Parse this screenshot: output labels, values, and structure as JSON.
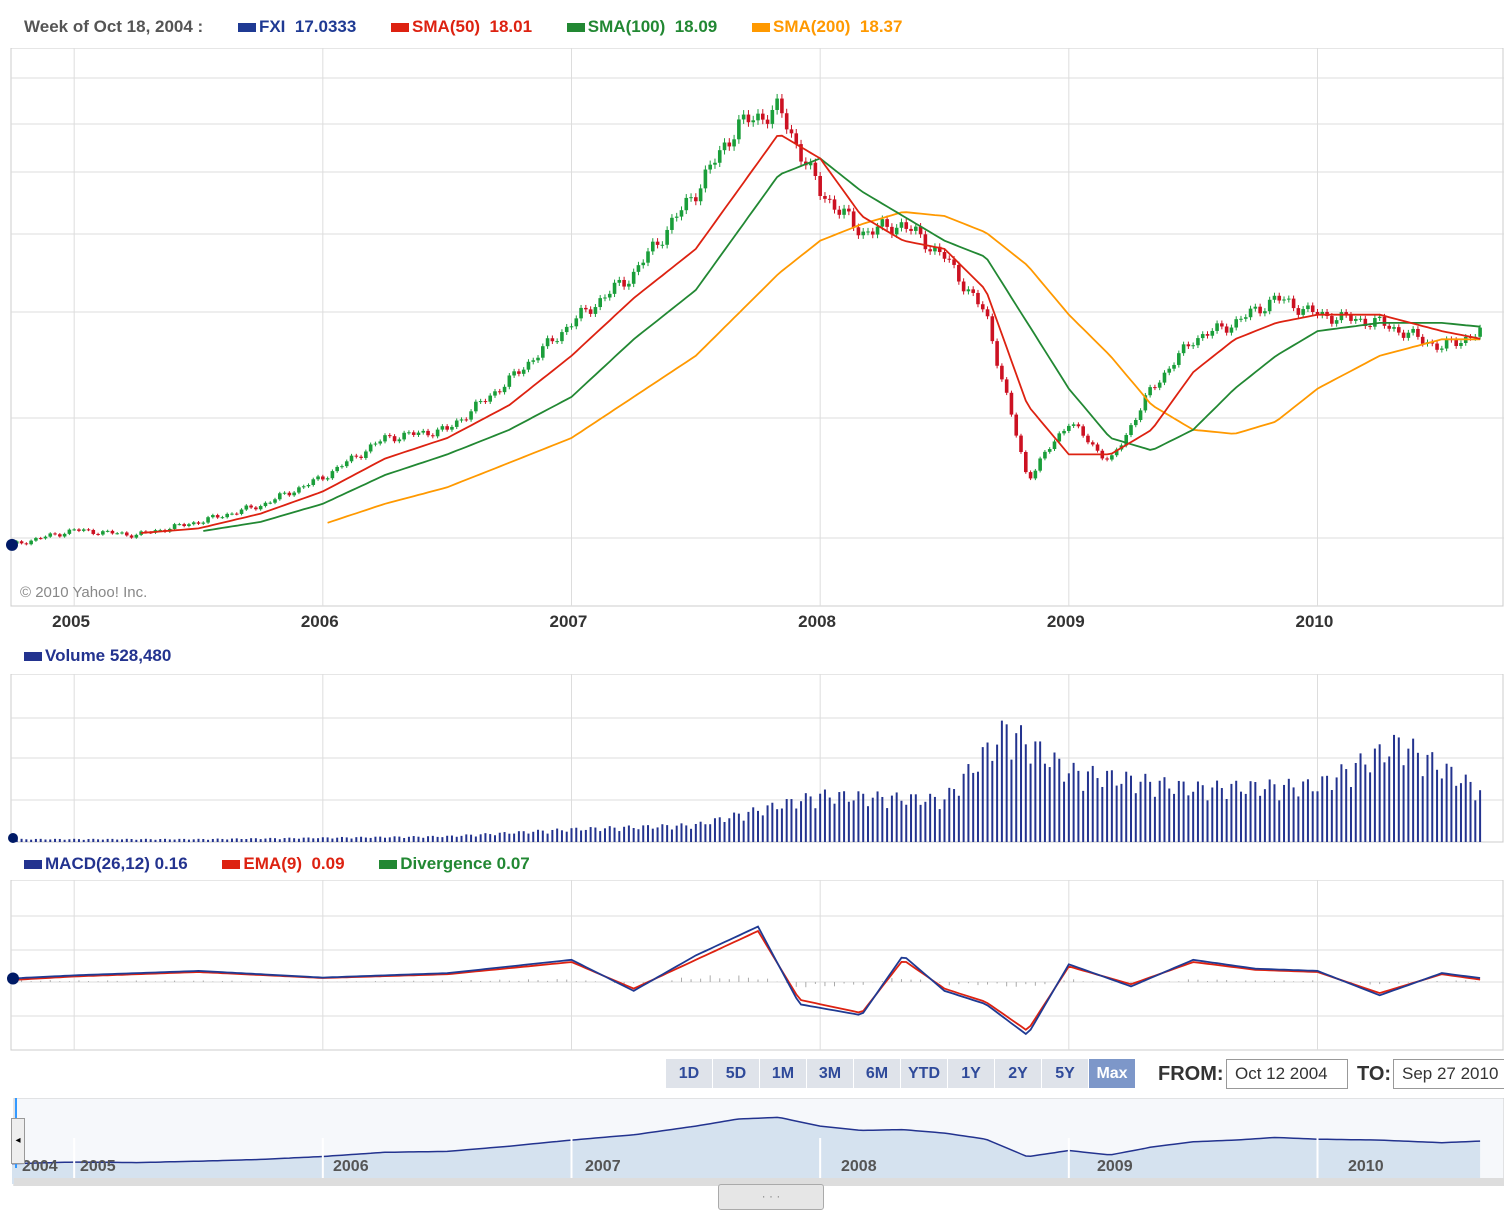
{
  "header": {
    "week_label": "Week of Oct 18, 2004 :",
    "fxi_label": "FXI",
    "fxi_value": "17.0333",
    "sma50_label": "SMA(50)",
    "sma50_value": "18.01",
    "sma100_label": "SMA(100)",
    "sma100_value": "18.09",
    "sma200_label": "SMA(200)",
    "sma200_value": "18.37"
  },
  "colors": {
    "fxi": "#1f3a93",
    "sma50": "#dd2211",
    "sma100": "#228833",
    "sma200": "#ff9900",
    "up": "#1a9e3a",
    "down": "#cc1122",
    "volume": "#23338f",
    "nav_fill": "#d5e2ef",
    "nav_line": "#23338f"
  },
  "copyright": "© 2010 Yahoo! Inc.",
  "years": [
    "2005",
    "2006",
    "2007",
    "2008",
    "2009",
    "2010"
  ],
  "volume_header": {
    "label": "Volume",
    "value": "528,480"
  },
  "macd_header": {
    "macd_label": "MACD(26,12)",
    "macd_value": "0.16",
    "ema_label": "EMA(9)",
    "ema_value": "0.09",
    "div_label": "Divergence",
    "div_value": "0.07"
  },
  "range_buttons": [
    "1D",
    "5D",
    "1M",
    "3M",
    "6M",
    "YTD",
    "1Y",
    "2Y",
    "5Y",
    "Max"
  ],
  "active_range": "Max",
  "from_label": "FROM:",
  "from_value": "Oct 12 2004",
  "to_label": "TO:",
  "to_value": "Sep 27 2010",
  "nav_years": [
    "2004",
    "2005",
    "2006",
    "2007",
    "2008",
    "2009",
    "2010"
  ],
  "chart_data": [
    {
      "type": "line",
      "x": [
        "2004-10",
        "2005-01",
        "2005-04",
        "2005-07",
        "2005-10",
        "2006-01",
        "2006-04",
        "2006-07",
        "2006-10",
        "2007-01",
        "2007-04",
        "2007-07",
        "2007-09",
        "2007-11",
        "2008-01",
        "2008-03",
        "2008-05",
        "2008-07",
        "2008-09",
        "2008-11",
        "2009-01",
        "2009-03",
        "2009-05",
        "2009-07",
        "2009-09",
        "2009-11",
        "2010-01",
        "2010-04",
        "2010-07",
        "2010-09"
      ],
      "series": [
        {
          "name": "FXI",
          "values": [
            17.0,
            18.8,
            18.2,
            19.8,
            21.8,
            25.2,
            30.0,
            31.0,
            37.0,
            44.0,
            50.0,
            60.0,
            68.0,
            70.0,
            60.0,
            55.0,
            56.0,
            52.0,
            45.0,
            25.0,
            32.0,
            27.0,
            36.0,
            42.0,
            44.0,
            47.0,
            45.0,
            44.0,
            41.0,
            43.0
          ]
        },
        {
          "name": "SMA(50)",
          "values": [
            null,
            null,
            18.4,
            19.0,
            20.8,
            23.5,
            27.5,
            30.0,
            34.0,
            40.0,
            47.0,
            53.0,
            60.0,
            67.0,
            64.0,
            57.0,
            54.0,
            53.0,
            48.0,
            34.0,
            28.0,
            28.0,
            31.0,
            38.0,
            42.0,
            44.0,
            45.0,
            45.0,
            43.0,
            42.0
          ]
        },
        {
          "name": "SMA(100)",
          "values": [
            null,
            null,
            null,
            18.6,
            19.8,
            22.0,
            25.5,
            28.0,
            31.0,
            35.0,
            42.0,
            48.0,
            55.0,
            62.0,
            64.0,
            60.0,
            57.0,
            54.0,
            52.0,
            44.0,
            36.0,
            30.0,
            28.5,
            31.0,
            36.0,
            40.0,
            43.0,
            44.0,
            44.0,
            43.5
          ]
        },
        {
          "name": "SMA(200)",
          "values": [
            null,
            null,
            null,
            null,
            null,
            19.5,
            22.0,
            24.0,
            27.0,
            30.0,
            35.0,
            40.0,
            45.0,
            50.0,
            54.0,
            56.0,
            57.5,
            57.0,
            55.0,
            51.0,
            45.0,
            40.0,
            34.0,
            31.0,
            30.5,
            32.0,
            36.0,
            40.0,
            42.0,
            42.0
          ]
        }
      ],
      "ylim": [
        12,
        75
      ]
    },
    {
      "type": "bar",
      "categories": [
        "2004-10",
        "2005-01",
        "2005-07",
        "2006-01",
        "2006-07",
        "2007-01",
        "2007-07",
        "2008-01",
        "2008-07",
        "2008-10",
        "2009-01",
        "2009-07",
        "2010-01",
        "2010-05",
        "2010-09"
      ],
      "values": [
        0.02,
        0.02,
        0.02,
        0.03,
        0.04,
        0.09,
        0.12,
        0.33,
        0.3,
        0.8,
        0.5,
        0.38,
        0.4,
        0.7,
        0.35
      ],
      "ylim": [
        0,
        1
      ]
    },
    {
      "type": "line",
      "x": [
        "2004-10",
        "2005-01",
        "2005-07",
        "2006-01",
        "2006-07",
        "2007-01",
        "2007-04",
        "2007-07",
        "2007-10",
        "2007-12",
        "2008-03",
        "2008-05",
        "2008-07",
        "2008-09",
        "2008-11",
        "2009-01",
        "2009-04",
        "2009-07",
        "2009-10",
        "2010-01",
        "2010-04",
        "2010-07",
        "2010-09"
      ],
      "series": [
        {
          "name": "MACD(26,12)",
          "values": [
            0.16,
            0.3,
            0.5,
            0.2,
            0.4,
            1.0,
            -0.4,
            1.2,
            2.5,
            -1.0,
            -1.5,
            1.2,
            -0.4,
            -1.0,
            -2.4,
            0.8,
            -0.2,
            1.0,
            0.6,
            0.5,
            -0.6,
            0.4,
            0.16
          ]
        },
        {
          "name": "EMA(9)",
          "values": [
            0.09,
            0.25,
            0.45,
            0.18,
            0.35,
            0.9,
            -0.3,
            1.0,
            2.3,
            -0.8,
            -1.4,
            1.0,
            -0.3,
            -0.9,
            -2.2,
            0.7,
            -0.1,
            0.9,
            0.55,
            0.45,
            -0.5,
            0.35,
            0.09
          ]
        },
        {
          "name": "Divergence",
          "values": [
            0.07,
            0.05,
            0.05,
            0.02,
            0.05,
            0.1,
            -0.1,
            0.2,
            0.2,
            -0.2,
            -0.1,
            0.2,
            -0.1,
            -0.1,
            -0.2,
            0.1,
            -0.1,
            0.1,
            0.05,
            0.05,
            -0.1,
            0.05,
            0.07
          ]
        }
      ],
      "ylim": [
        -3,
        3
      ]
    }
  ]
}
